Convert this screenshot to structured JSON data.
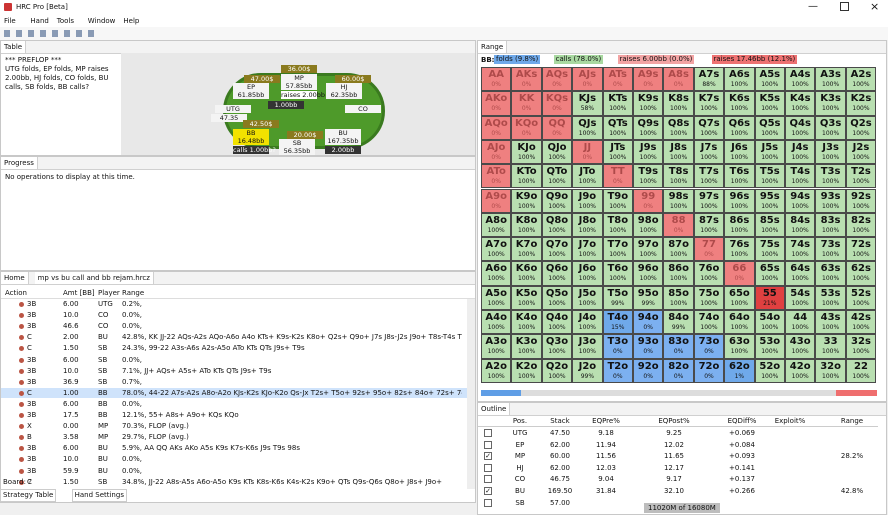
{
  "window": {
    "title": "HRC Pro [Beta]"
  },
  "menu": [
    "File",
    "Hand",
    "Tools",
    "Window",
    "Help"
  ],
  "table_panel": {
    "tab": "Table",
    "history": "*** PREFLOP ***\nUTG folds, EP folds, MP raises 2.00bb, HJ folds, CO folds, BU calls, SB folds, BB calls?",
    "table_labels": [
      "36.00$",
      "MP",
      "57.85bb",
      "raises 2.00bb",
      "1.00bb",
      "47.00$",
      "EP",
      "61.85bb",
      "60.00$",
      "HJ",
      "62.35bb",
      "UTG",
      "47.35",
      "CO",
      "42.50$",
      "BB",
      "16.48bb",
      "calls 1.00bb?",
      "20.00$",
      "SB",
      "56.35bb",
      "BU",
      "167.35bb",
      "2.00bb"
    ]
  },
  "progress_panel": {
    "tab": "Progress",
    "message": "No operations to display at this time."
  },
  "tree_panel": {
    "tabs": [
      "Home",
      "mp vs bu call and bb rejam.hrcz"
    ],
    "columns": [
      "Action",
      "Amt [BB]",
      "Player",
      "Range"
    ],
    "rows": [
      [
        "3B",
        "6.00",
        "UTG",
        "0.2%,"
      ],
      [
        "3B",
        "10.0",
        "CO",
        "0.0%,"
      ],
      [
        "3B",
        "46.6",
        "CO",
        "0.0%,"
      ],
      [
        "C",
        "2.00",
        "BU",
        "42.8%, KK JJ-22 AQs-A2s AQo-A6o A4o KTs+ K9s-K2s K8o+ Q2s+ Q9o+ J7s J8s-J2s J9o+ T8s-T4s T8o+ 97s+ 96s+ 85s+ 74s+ 87o"
      ],
      [
        "C",
        "1.50",
        "SB",
        "24.3%, 99-22 A3s-A6s A2s-A5o ATo KTs QTs J9s+ T9s"
      ],
      [
        "3B",
        "6.00",
        "SB",
        "0.0%,"
      ],
      [
        "3B",
        "10.0",
        "SB",
        "7.1%, JJ+ AQs+ A5s+ ATo KTs QTs J9s+ T9s"
      ],
      [
        "3B",
        "36.9",
        "SB",
        "0.7%,"
      ],
      [
        "C",
        "1.00",
        "BB",
        "78.0%, 44-22 A7s-A2s A8o-A2o KJs-K2s KJo-K2o Qs-Jx T2s+ T5o+ 92s+ 95o+ 82s+ 84o+ 72s+ 74o+ 62s+ 63o+"
      ],
      [
        "3B",
        "6.00",
        "BB",
        "0.0%,"
      ],
      [
        "3B",
        "17.5",
        "BB",
        "12.1%, 55+ A8s+ A9o+ KQs KQo"
      ],
      [
        "X",
        "0.00",
        "MP",
        "70.3%, FLOP (avg.)"
      ],
      [
        "B",
        "3.58",
        "MP",
        "29.7%, FLOP (avg.)"
      ],
      [
        "3B",
        "6.00",
        "BU",
        "5.9%, AA QQ AKs AKo A5s K9s K7s-K6s J9s T9s 98s"
      ],
      [
        "3B",
        "10.0",
        "BU",
        "0.0%,"
      ],
      [
        "3B",
        "59.9",
        "BU",
        "0.0%,"
      ],
      [
        "C",
        "1.50",
        "SB",
        "34.8%, JJ-22 A8s-A5s A6o-A5o K9s KTs K8s-K6s K4s-K2s K9o+ QTs Q9s-Q6s Q8o+ J8s+ J9o+"
      ]
    ],
    "board": "Board: ?",
    "bottom_tabs": [
      "Strategy Table",
      "Hand Settings"
    ]
  },
  "range_panel": {
    "tab": "Range",
    "player": "BB:",
    "legend": [
      {
        "label": "folds (9.8%)",
        "color": "#6fa9ea"
      },
      {
        "label": "calls (78.0%)",
        "color": "#a9d9a1"
      },
      {
        "label": "raises 6.00bb (0.0%)",
        "color": "#f3a4a4"
      },
      {
        "label": "raises 17.46bb (12.1%)",
        "color": "#ee7272"
      }
    ],
    "grid": [
      [
        [
          "AA",
          "0%",
          "#ef8080"
        ],
        [
          "AKs",
          "0%",
          "#ef8080"
        ],
        [
          "AQs",
          "0%",
          "#ef8080"
        ],
        [
          "AJs",
          "0%",
          "#ef8080"
        ],
        [
          "ATs",
          "0%",
          "#ef8080"
        ],
        [
          "A9s",
          "0%",
          "#ef8080"
        ],
        [
          "A8s",
          "0%",
          "#ef8080"
        ],
        [
          "A7s",
          "88%",
          "#b9dfb1"
        ],
        [
          "A6s",
          "100%",
          "#b9dfb1"
        ],
        [
          "A5s",
          "100%",
          "#b9dfb1"
        ],
        [
          "A4s",
          "100%",
          "#b9dfb1"
        ],
        [
          "A3s",
          "100%",
          "#b9dfb1"
        ],
        [
          "A2s",
          "100%",
          "#b9dfb1"
        ]
      ],
      [
        [
          "AKo",
          "0%",
          "#ef8080"
        ],
        [
          "KK",
          "0%",
          "#ef8080"
        ],
        [
          "KQs",
          "0%",
          "#ef8080"
        ],
        [
          "KJs",
          "58%",
          "#b9dfb1"
        ],
        [
          "KTs",
          "100%",
          "#b9dfb1"
        ],
        [
          "K9s",
          "100%",
          "#b9dfb1"
        ],
        [
          "K8s",
          "100%",
          "#b9dfb1"
        ],
        [
          "K7s",
          "100%",
          "#b9dfb1"
        ],
        [
          "K6s",
          "100%",
          "#b9dfb1"
        ],
        [
          "K5s",
          "100%",
          "#b9dfb1"
        ],
        [
          "K4s",
          "100%",
          "#b9dfb1"
        ],
        [
          "K3s",
          "100%",
          "#b9dfb1"
        ],
        [
          "K2s",
          "100%",
          "#b9dfb1"
        ]
      ],
      [
        [
          "AQo",
          "0%",
          "#ef8080"
        ],
        [
          "KQo",
          "0%",
          "#ef8080"
        ],
        [
          "QQ",
          "0%",
          "#ef8080"
        ],
        [
          "QJs",
          "100%",
          "#b9dfb1"
        ],
        [
          "QTs",
          "100%",
          "#b9dfb1"
        ],
        [
          "Q9s",
          "100%",
          "#b9dfb1"
        ],
        [
          "Q8s",
          "100%",
          "#b9dfb1"
        ],
        [
          "Q7s",
          "100%",
          "#b9dfb1"
        ],
        [
          "Q6s",
          "100%",
          "#b9dfb1"
        ],
        [
          "Q5s",
          "100%",
          "#b9dfb1"
        ],
        [
          "Q4s",
          "100%",
          "#b9dfb1"
        ],
        [
          "Q3s",
          "100%",
          "#b9dfb1"
        ],
        [
          "Q2s",
          "100%",
          "#b9dfb1"
        ]
      ],
      [
        [
          "AJo",
          "0%",
          "#ef8080"
        ],
        [
          "KJo",
          "100%",
          "#b9dfb1"
        ],
        [
          "QJo",
          "100%",
          "#b9dfb1"
        ],
        [
          "JJ",
          "0%",
          "#ef8080"
        ],
        [
          "JTs",
          "100%",
          "#b9dfb1"
        ],
        [
          "J9s",
          "100%",
          "#b9dfb1"
        ],
        [
          "J8s",
          "100%",
          "#b9dfb1"
        ],
        [
          "J7s",
          "100%",
          "#b9dfb1"
        ],
        [
          "J6s",
          "100%",
          "#b9dfb1"
        ],
        [
          "J5s",
          "100%",
          "#b9dfb1"
        ],
        [
          "J4s",
          "100%",
          "#b9dfb1"
        ],
        [
          "J3s",
          "100%",
          "#b9dfb1"
        ],
        [
          "J2s",
          "100%",
          "#b9dfb1"
        ]
      ],
      [
        [
          "ATo",
          "0%",
          "#ef8080"
        ],
        [
          "KTo",
          "100%",
          "#b9dfb1"
        ],
        [
          "QTo",
          "100%",
          "#b9dfb1"
        ],
        [
          "JTo",
          "100%",
          "#b9dfb1"
        ],
        [
          "TT",
          "0%",
          "#ef8080"
        ],
        [
          "T9s",
          "100%",
          "#b9dfb1"
        ],
        [
          "T8s",
          "100%",
          "#b9dfb1"
        ],
        [
          "T7s",
          "100%",
          "#b9dfb1"
        ],
        [
          "T6s",
          "100%",
          "#b9dfb1"
        ],
        [
          "T5s",
          "100%",
          "#b9dfb1"
        ],
        [
          "T4s",
          "100%",
          "#b9dfb1"
        ],
        [
          "T3s",
          "100%",
          "#b9dfb1"
        ],
        [
          "T2s",
          "100%",
          "#b9dfb1"
        ]
      ],
      [
        [
          "A9o",
          "0%",
          "#ef8080"
        ],
        [
          "K9o",
          "100%",
          "#b9dfb1"
        ],
        [
          "Q9o",
          "100%",
          "#b9dfb1"
        ],
        [
          "J9o",
          "100%",
          "#b9dfb1"
        ],
        [
          "T9o",
          "100%",
          "#b9dfb1"
        ],
        [
          "99",
          "0%",
          "#ef8080"
        ],
        [
          "98s",
          "100%",
          "#b9dfb1"
        ],
        [
          "97s",
          "100%",
          "#b9dfb1"
        ],
        [
          "96s",
          "100%",
          "#b9dfb1"
        ],
        [
          "95s",
          "100%",
          "#b9dfb1"
        ],
        [
          "94s",
          "100%",
          "#b9dfb1"
        ],
        [
          "93s",
          "100%",
          "#b9dfb1"
        ],
        [
          "92s",
          "100%",
          "#b9dfb1"
        ]
      ],
      [
        [
          "A8o",
          "100%",
          "#b9dfb1"
        ],
        [
          "K8o",
          "100%",
          "#b9dfb1"
        ],
        [
          "Q8o",
          "100%",
          "#b9dfb1"
        ],
        [
          "J8o",
          "100%",
          "#b9dfb1"
        ],
        [
          "T8o",
          "100%",
          "#b9dfb1"
        ],
        [
          "98o",
          "100%",
          "#b9dfb1"
        ],
        [
          "88",
          "0%",
          "#ef8080"
        ],
        [
          "87s",
          "100%",
          "#b9dfb1"
        ],
        [
          "86s",
          "100%",
          "#b9dfb1"
        ],
        [
          "85s",
          "100%",
          "#b9dfb1"
        ],
        [
          "84s",
          "100%",
          "#b9dfb1"
        ],
        [
          "83s",
          "100%",
          "#b9dfb1"
        ],
        [
          "82s",
          "100%",
          "#b9dfb1"
        ]
      ],
      [
        [
          "A7o",
          "100%",
          "#b9dfb1"
        ],
        [
          "K7o",
          "100%",
          "#b9dfb1"
        ],
        [
          "Q7o",
          "100%",
          "#b9dfb1"
        ],
        [
          "J7o",
          "100%",
          "#b9dfb1"
        ],
        [
          "T7o",
          "100%",
          "#b9dfb1"
        ],
        [
          "97o",
          "100%",
          "#b9dfb1"
        ],
        [
          "87o",
          "100%",
          "#b9dfb1"
        ],
        [
          "77",
          "0%",
          "#ef8080"
        ],
        [
          "76s",
          "100%",
          "#b9dfb1"
        ],
        [
          "75s",
          "100%",
          "#b9dfb1"
        ],
        [
          "74s",
          "100%",
          "#b9dfb1"
        ],
        [
          "73s",
          "100%",
          "#b9dfb1"
        ],
        [
          "72s",
          "100%",
          "#b9dfb1"
        ]
      ],
      [
        [
          "A6o",
          "100%",
          "#b9dfb1"
        ],
        [
          "K6o",
          "100%",
          "#b9dfb1"
        ],
        [
          "Q6o",
          "100%",
          "#b9dfb1"
        ],
        [
          "J6o",
          "100%",
          "#b9dfb1"
        ],
        [
          "T6o",
          "100%",
          "#b9dfb1"
        ],
        [
          "96o",
          "100%",
          "#b9dfb1"
        ],
        [
          "86o",
          "100%",
          "#b9dfb1"
        ],
        [
          "76o",
          "100%",
          "#b9dfb1"
        ],
        [
          "66",
          "0%",
          "#ef8080"
        ],
        [
          "65s",
          "100%",
          "#b9dfb1"
        ],
        [
          "64s",
          "100%",
          "#b9dfb1"
        ],
        [
          "63s",
          "100%",
          "#b9dfb1"
        ],
        [
          "62s",
          "100%",
          "#b9dfb1"
        ]
      ],
      [
        [
          "A5o",
          "100%",
          "#b9dfb1"
        ],
        [
          "K5o",
          "100%",
          "#b9dfb1"
        ],
        [
          "Q5o",
          "100%",
          "#b9dfb1"
        ],
        [
          "J5o",
          "100%",
          "#b9dfb1"
        ],
        [
          "T5o",
          "99%",
          "#b9dfb1"
        ],
        [
          "95o",
          "99%",
          "#b9dfb1"
        ],
        [
          "85o",
          "100%",
          "#b9dfb1"
        ],
        [
          "75o",
          "100%",
          "#b9dfb1"
        ],
        [
          "65o",
          "100%",
          "#b9dfb1"
        ],
        [
          "55",
          "21%",
          "#e04040"
        ],
        [
          "54s",
          "100%",
          "#b9dfb1"
        ],
        [
          "53s",
          "100%",
          "#b9dfb1"
        ],
        [
          "52s",
          "100%",
          "#b9dfb1"
        ]
      ],
      [
        [
          "A4o",
          "100%",
          "#b9dfb1"
        ],
        [
          "K4o",
          "100%",
          "#b9dfb1"
        ],
        [
          "Q4o",
          "100%",
          "#b9dfb1"
        ],
        [
          "J4o",
          "100%",
          "#b9dfb1"
        ],
        [
          "T4o",
          "15%",
          "#6fa9ea"
        ],
        [
          "94o",
          "0%",
          "#7cb0f0"
        ],
        [
          "84o",
          "99%",
          "#b9dfb1"
        ],
        [
          "74o",
          "100%",
          "#b9dfb1"
        ],
        [
          "64o",
          "100%",
          "#b9dfb1"
        ],
        [
          "54o",
          "100%",
          "#b9dfb1"
        ],
        [
          "44",
          "100%",
          "#b9dfb1"
        ],
        [
          "43s",
          "100%",
          "#b9dfb1"
        ],
        [
          "42s",
          "100%",
          "#b9dfb1"
        ]
      ],
      [
        [
          "A3o",
          "100%",
          "#b9dfb1"
        ],
        [
          "K3o",
          "100%",
          "#b9dfb1"
        ],
        [
          "Q3o",
          "100%",
          "#b9dfb1"
        ],
        [
          "J3o",
          "100%",
          "#b9dfb1"
        ],
        [
          "T3o",
          "0%",
          "#7cb0f0"
        ],
        [
          "93o",
          "0%",
          "#7cb0f0"
        ],
        [
          "83o",
          "0%",
          "#7cb0f0"
        ],
        [
          "73o",
          "0%",
          "#7cb0f0"
        ],
        [
          "63o",
          "100%",
          "#b9dfb1"
        ],
        [
          "53o",
          "100%",
          "#b9dfb1"
        ],
        [
          "43o",
          "100%",
          "#b9dfb1"
        ],
        [
          "33",
          "100%",
          "#b9dfb1"
        ],
        [
          "32s",
          "100%",
          "#b9dfb1"
        ]
      ],
      [
        [
          "A2o",
          "100%",
          "#b9dfb1"
        ],
        [
          "K2o",
          "100%",
          "#b9dfb1"
        ],
        [
          "Q2o",
          "100%",
          "#b9dfb1"
        ],
        [
          "J2o",
          "99%",
          "#b9dfb1"
        ],
        [
          "T2o",
          "0%",
          "#7cb0f0"
        ],
        [
          "92o",
          "0%",
          "#7cb0f0"
        ],
        [
          "82o",
          "0%",
          "#7cb0f0"
        ],
        [
          "72o",
          "0%",
          "#7cb0f0"
        ],
        [
          "62o",
          "1%",
          "#6fa9ea"
        ],
        [
          "52o",
          "100%",
          "#b9dfb1"
        ],
        [
          "42o",
          "100%",
          "#b9dfb1"
        ],
        [
          "32o",
          "100%",
          "#b9dfb1"
        ],
        [
          "22",
          "100%",
          "#b9dfb1"
        ]
      ]
    ]
  },
  "outline_panel": {
    "tab": "Outline",
    "columns": [
      "Pos.",
      "Stack",
      "EQPre%",
      "EQPost%",
      "EQDiff%",
      "Exploit%",
      "Range"
    ],
    "rows": [
      {
        "pos": "UTG",
        "stack": "47.50",
        "eqpre": "9.18",
        "eqpost": "9.25",
        "eqdiff": "+0.069",
        "checked": false
      },
      {
        "pos": "EP",
        "stack": "62.00",
        "eqpre": "11.94",
        "eqpost": "12.02",
        "eqdiff": "+0.084",
        "checked": false
      },
      {
        "pos": "MP",
        "stack": "60.00",
        "eqpre": "11.56",
        "eqpost": "11.65",
        "eqdiff": "+0.093",
        "range": "28.2%",
        "checked": true
      },
      {
        "pos": "HJ",
        "stack": "62.00",
        "eqpre": "12.03",
        "eqpost": "12.17",
        "eqdiff": "+0.141",
        "checked": false
      },
      {
        "pos": "CO",
        "stack": "46.75",
        "eqpre": "9.04",
        "eqpost": "9.17",
        "eqdiff": "+0.137",
        "checked": false
      },
      {
        "pos": "BU",
        "stack": "169.50",
        "eqpre": "31.84",
        "eqpost": "32.10",
        "eqdiff": "+0.266",
        "range": "42.8%",
        "checked": true
      },
      {
        "pos": "SB",
        "stack": "57.00",
        "checked": false
      }
    ],
    "memory": "11020M of 16080M"
  }
}
